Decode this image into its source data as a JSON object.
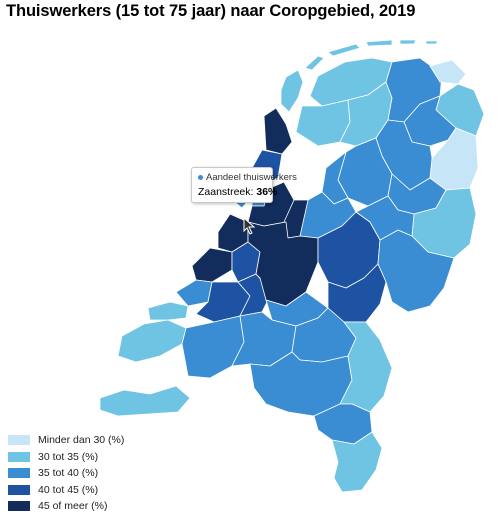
{
  "title": "Thuiswerkers (15 tot 75 jaar) naar Coropgebied, 2019",
  "legend": [
    {
      "label": "Minder dan 30 (%)",
      "color": "#c6e5f7"
    },
    {
      "label": "30 tot 35 (%)",
      "color": "#6fc3e3"
    },
    {
      "label": "35 tot 40 (%)",
      "color": "#3a8dd3"
    },
    {
      "label": "40 tot 45 (%)",
      "color": "#1e52a2"
    },
    {
      "label": "45 of meer (%)",
      "color": "#122d5c"
    }
  ],
  "tooltip": {
    "series": "Aandeel thuiswerkers",
    "region": "Zaanstreek:",
    "value": "36%"
  }
}
